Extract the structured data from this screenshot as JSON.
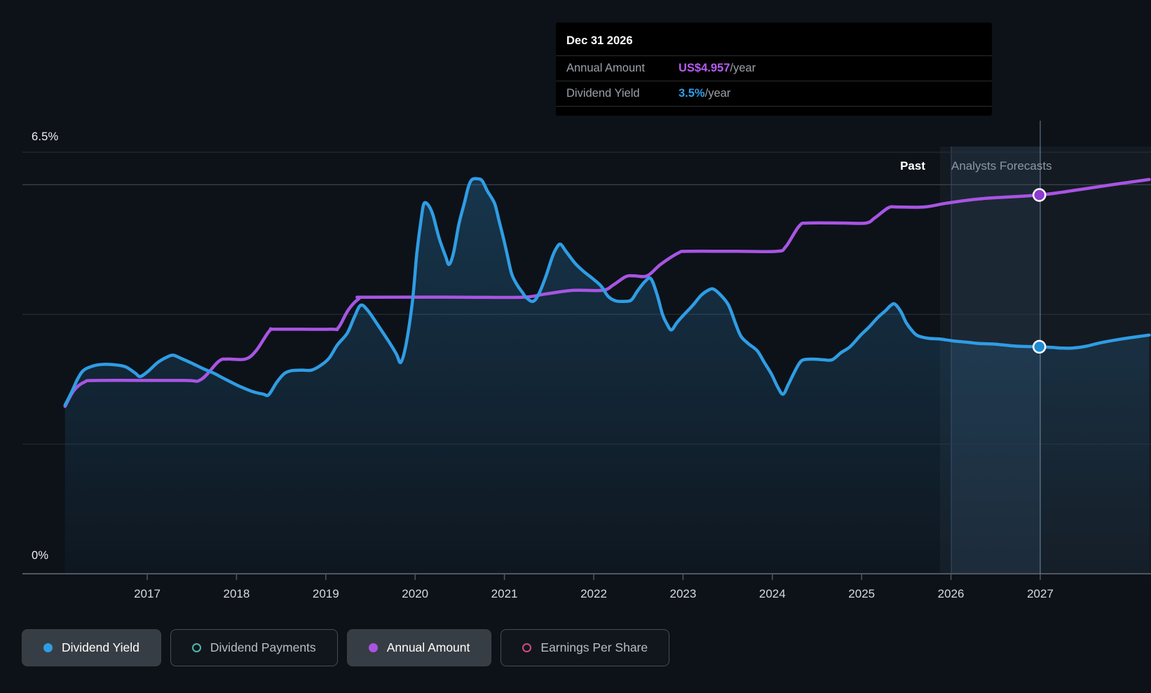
{
  "y_axis": {
    "top_label": "6.5%",
    "bottom_label": "0%",
    "ticks_pct": [
      6.5,
      6,
      4,
      2,
      0
    ]
  },
  "x_axis": {
    "labels": [
      "2017",
      "2018",
      "2019",
      "2020",
      "2021",
      "2022",
      "2023",
      "2024",
      "2025",
      "2026",
      "2027"
    ]
  },
  "regions": {
    "past_label": "Past",
    "forecast_label": "Analysts Forecasts"
  },
  "tooltip": {
    "date": "Dec 31 2026",
    "rows": [
      {
        "label": "Annual Amount",
        "value": "US$4.957",
        "suffix": "/year",
        "value_color": "#b55cf2"
      },
      {
        "label": "Dividend Yield",
        "value": "3.5%",
        "suffix": "/year",
        "value_color": "#2ea0ea"
      }
    ]
  },
  "legend": {
    "items": [
      {
        "label": "Dividend Yield",
        "color": "#2f9de4",
        "swatch": "filled",
        "active": true
      },
      {
        "label": "Dividend Payments",
        "color": "#4fb8a8",
        "swatch": "ring",
        "active": false
      },
      {
        "label": "Annual Amount",
        "color": "#a855e3",
        "swatch": "filled",
        "active": true
      },
      {
        "label": "Earnings Per Share",
        "color": "#d04a82",
        "swatch": "ring",
        "active": false
      }
    ]
  },
  "chart_data": {
    "type": "line",
    "x_range": [
      2016.05,
      2028.25
    ],
    "y_range_pct": [
      0,
      6.5
    ],
    "grid": "horizontal",
    "legend_position": "bottom",
    "annotations": {
      "past_label": "Past",
      "forecast_label": "Analysts Forecasts"
    },
    "markers": [
      {
        "series": "Annual Amount",
        "date": "Dec 31 2026",
        "year": 2026.99,
        "value": 4.957,
        "unit": "US$/year"
      },
      {
        "series": "Dividend Yield",
        "date": "Dec 31 2026",
        "year": 2026.99,
        "value": 3.5,
        "unit": "%/year"
      }
    ],
    "series": [
      {
        "name": "Dividend Yield",
        "unit": "%",
        "color": "#2f9de4",
        "style": "area-line",
        "points": [
          [
            2016.08,
            2.6
          ],
          [
            2016.15,
            2.79
          ],
          [
            2016.22,
            3.0
          ],
          [
            2016.29,
            3.14
          ],
          [
            2016.41,
            3.21
          ],
          [
            2016.53,
            3.23
          ],
          [
            2016.65,
            3.22
          ],
          [
            2016.76,
            3.19
          ],
          [
            2016.87,
            3.09
          ],
          [
            2016.92,
            3.04
          ],
          [
            2017.0,
            3.11
          ],
          [
            2017.12,
            3.26
          ],
          [
            2017.22,
            3.34
          ],
          [
            2017.29,
            3.37
          ],
          [
            2017.38,
            3.32
          ],
          [
            2017.51,
            3.24
          ],
          [
            2017.63,
            3.16
          ],
          [
            2017.75,
            3.09
          ],
          [
            2017.86,
            3.01
          ],
          [
            2018.02,
            2.9
          ],
          [
            2018.18,
            2.81
          ],
          [
            2018.3,
            2.77
          ],
          [
            2018.36,
            2.76
          ],
          [
            2018.45,
            2.95
          ],
          [
            2018.53,
            3.08
          ],
          [
            2018.61,
            3.13
          ],
          [
            2018.73,
            3.14
          ],
          [
            2018.84,
            3.14
          ],
          [
            2018.95,
            3.22
          ],
          [
            2019.04,
            3.33
          ],
          [
            2019.13,
            3.53
          ],
          [
            2019.24,
            3.71
          ],
          [
            2019.32,
            3.96
          ],
          [
            2019.39,
            4.14
          ],
          [
            2019.47,
            4.06
          ],
          [
            2019.59,
            3.82
          ],
          [
            2019.71,
            3.57
          ],
          [
            2019.79,
            3.39
          ],
          [
            2019.84,
            3.26
          ],
          [
            2019.9,
            3.55
          ],
          [
            2019.97,
            4.2
          ],
          [
            2020.02,
            4.95
          ],
          [
            2020.07,
            5.49
          ],
          [
            2020.1,
            5.71
          ],
          [
            2020.15,
            5.68
          ],
          [
            2020.2,
            5.53
          ],
          [
            2020.27,
            5.17
          ],
          [
            2020.34,
            4.9
          ],
          [
            2020.38,
            4.77
          ],
          [
            2020.43,
            4.95
          ],
          [
            2020.49,
            5.39
          ],
          [
            2020.55,
            5.71
          ],
          [
            2020.6,
            5.98
          ],
          [
            2020.64,
            6.08
          ],
          [
            2020.7,
            6.09
          ],
          [
            2020.75,
            6.06
          ],
          [
            2020.81,
            5.9
          ],
          [
            2020.89,
            5.71
          ],
          [
            2020.94,
            5.44
          ],
          [
            2020.99,
            5.17
          ],
          [
            2021.03,
            4.93
          ],
          [
            2021.08,
            4.63
          ],
          [
            2021.14,
            4.46
          ],
          [
            2021.2,
            4.34
          ],
          [
            2021.25,
            4.25
          ],
          [
            2021.32,
            4.2
          ],
          [
            2021.38,
            4.3
          ],
          [
            2021.46,
            4.57
          ],
          [
            2021.54,
            4.9
          ],
          [
            2021.59,
            5.04
          ],
          [
            2021.63,
            5.08
          ],
          [
            2021.69,
            4.97
          ],
          [
            2021.79,
            4.79
          ],
          [
            2021.88,
            4.67
          ],
          [
            2021.98,
            4.56
          ],
          [
            2022.08,
            4.44
          ],
          [
            2022.16,
            4.28
          ],
          [
            2022.24,
            4.21
          ],
          [
            2022.34,
            4.2
          ],
          [
            2022.42,
            4.22
          ],
          [
            2022.49,
            4.36
          ],
          [
            2022.57,
            4.5
          ],
          [
            2022.64,
            4.55
          ],
          [
            2022.71,
            4.3
          ],
          [
            2022.77,
            4.0
          ],
          [
            2022.82,
            3.85
          ],
          [
            2022.87,
            3.76
          ],
          [
            2022.93,
            3.87
          ],
          [
            2023.0,
            3.98
          ],
          [
            2023.11,
            4.14
          ],
          [
            2023.2,
            4.29
          ],
          [
            2023.28,
            4.37
          ],
          [
            2023.34,
            4.39
          ],
          [
            2023.42,
            4.3
          ],
          [
            2023.51,
            4.14
          ],
          [
            2023.59,
            3.85
          ],
          [
            2023.65,
            3.66
          ],
          [
            2023.73,
            3.55
          ],
          [
            2023.83,
            3.44
          ],
          [
            2023.91,
            3.26
          ],
          [
            2023.99,
            3.08
          ],
          [
            2024.06,
            2.88
          ],
          [
            2024.12,
            2.77
          ],
          [
            2024.18,
            2.92
          ],
          [
            2024.24,
            3.09
          ],
          [
            2024.3,
            3.24
          ],
          [
            2024.35,
            3.3
          ],
          [
            2024.46,
            3.31
          ],
          [
            2024.57,
            3.3
          ],
          [
            2024.67,
            3.3
          ],
          [
            2024.77,
            3.41
          ],
          [
            2024.87,
            3.5
          ],
          [
            2024.99,
            3.68
          ],
          [
            2025.08,
            3.8
          ],
          [
            2025.18,
            3.95
          ],
          [
            2025.27,
            4.06
          ],
          [
            2025.32,
            4.13
          ],
          [
            2025.37,
            4.16
          ],
          [
            2025.44,
            4.04
          ],
          [
            2025.5,
            3.87
          ],
          [
            2025.57,
            3.74
          ],
          [
            2025.63,
            3.67
          ],
          [
            2025.75,
            3.63
          ],
          [
            2025.87,
            3.62
          ],
          [
            2026.03,
            3.59
          ],
          [
            2026.18,
            3.57
          ],
          [
            2026.32,
            3.55
          ],
          [
            2026.5,
            3.54
          ],
          [
            2026.73,
            3.51
          ],
          [
            2026.99,
            3.5
          ],
          [
            2027.13,
            3.49
          ],
          [
            2027.24,
            3.48
          ],
          [
            2027.36,
            3.48
          ],
          [
            2027.52,
            3.51
          ],
          [
            2027.67,
            3.56
          ],
          [
            2027.91,
            3.62
          ],
          [
            2028.11,
            3.66
          ],
          [
            2028.22,
            3.68
          ]
        ]
      },
      {
        "name": "Annual Amount",
        "unit": "US$/year",
        "color": "#a855e3",
        "style": "line",
        "points": [
          [
            2016.08,
            2.19
          ],
          [
            2016.18,
            2.4
          ],
          [
            2016.3,
            2.51
          ],
          [
            2016.45,
            2.53
          ],
          [
            2017.4,
            2.53
          ],
          [
            2017.6,
            2.54
          ],
          [
            2017.8,
            2.78
          ],
          [
            2017.9,
            2.81
          ],
          [
            2018.1,
            2.81
          ],
          [
            2018.22,
            2.92
          ],
          [
            2018.37,
            3.18
          ],
          [
            2018.45,
            3.2
          ],
          [
            2019.05,
            3.2
          ],
          [
            2019.14,
            3.22
          ],
          [
            2019.25,
            3.45
          ],
          [
            2019.37,
            3.6
          ],
          [
            2019.45,
            3.62
          ],
          [
            2020.5,
            3.62
          ],
          [
            2021.2,
            3.62
          ],
          [
            2021.45,
            3.66
          ],
          [
            2021.77,
            3.71
          ],
          [
            2022.1,
            3.71
          ],
          [
            2022.22,
            3.78
          ],
          [
            2022.36,
            3.89
          ],
          [
            2022.45,
            3.9
          ],
          [
            2022.6,
            3.9
          ],
          [
            2022.75,
            4.05
          ],
          [
            2022.95,
            4.2
          ],
          [
            2023.05,
            4.22
          ],
          [
            2023.6,
            4.22
          ],
          [
            2024.05,
            4.22
          ],
          [
            2024.15,
            4.28
          ],
          [
            2024.3,
            4.55
          ],
          [
            2024.4,
            4.59
          ],
          [
            2024.8,
            4.59
          ],
          [
            2025.05,
            4.59
          ],
          [
            2025.15,
            4.66
          ],
          [
            2025.3,
            4.79
          ],
          [
            2025.4,
            4.8
          ],
          [
            2025.7,
            4.8
          ],
          [
            2025.95,
            4.85
          ],
          [
            2026.35,
            4.91
          ],
          [
            2026.99,
            4.957
          ],
          [
            2027.45,
            5.03
          ],
          [
            2027.85,
            5.1
          ],
          [
            2028.22,
            5.16
          ]
        ]
      }
    ]
  }
}
